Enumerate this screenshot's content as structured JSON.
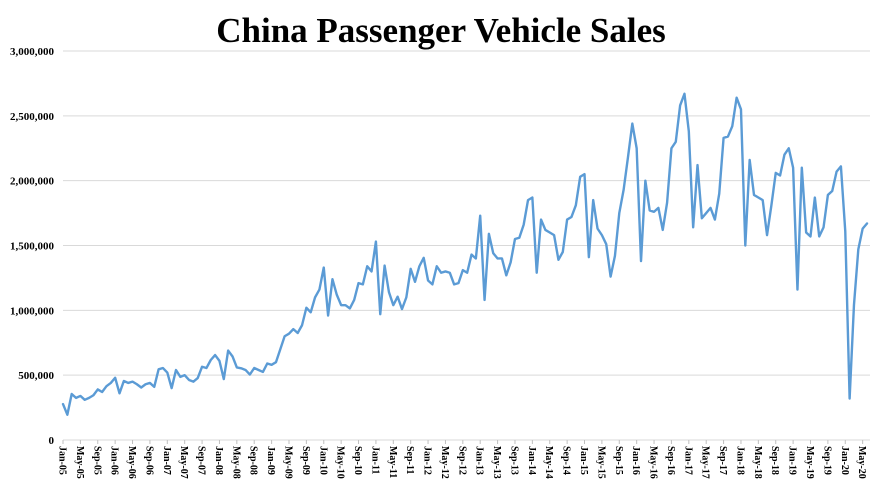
{
  "title": "China Passenger Vehicle Sales",
  "colors": {
    "line": "#5B9BD5",
    "gridline": "#D9D9D9",
    "tick": "#BFBFBF",
    "text": "#000000",
    "background": "#FFFFFF"
  },
  "chart_data": {
    "type": "line",
    "title": "China Passenger Vehicle Sales",
    "x_range": "Jan-05 to Jun-20, monthly",
    "ylim": [
      0,
      3000000
    ],
    "grid": "horizontal",
    "legend": "none",
    "y_ticks": [
      {
        "value": 0,
        "label": "0"
      },
      {
        "value": 500000,
        "label": "500,000"
      },
      {
        "value": 1000000,
        "label": "1,000,000"
      },
      {
        "value": 1500000,
        "label": "1,500,000"
      },
      {
        "value": 2000000,
        "label": "2,000,000"
      },
      {
        "value": 2500000,
        "label": "2,500,000"
      },
      {
        "value": 3000000,
        "label": "3,000,000"
      }
    ],
    "x_tick_interval": 4,
    "x_tick_labels": [
      "Jan-05",
      "May-05",
      "Sep-05",
      "Jan-06",
      "May-06",
      "Sep-06",
      "Jan-07",
      "May-07",
      "Sep-07",
      "Jan-08",
      "May-08",
      "Sep-08",
      "Jan-09",
      "May-09",
      "Sep-09",
      "Jan-10",
      "May-10",
      "Sep-10",
      "Jan-11",
      "May-11",
      "Sep-11",
      "Jan-12",
      "May-12",
      "Sep-12",
      "Jan-13",
      "May-13",
      "Sep-13",
      "Jan-14",
      "May-14",
      "Sep-14",
      "Jan-15",
      "May-15",
      "Sep-15",
      "Jan-16",
      "May-16",
      "Sep-16",
      "Jan-17",
      "May-17",
      "Sep-17",
      "Jan-18",
      "May-18",
      "Sep-18",
      "Jan-19",
      "May-19",
      "Sep-19",
      "Jan-20",
      "May-20"
    ],
    "values": [
      277000,
      195000,
      355000,
      325000,
      340000,
      310000,
      325000,
      345000,
      390000,
      370000,
      415000,
      440000,
      480000,
      360000,
      455000,
      440000,
      450000,
      430000,
      405000,
      430000,
      440000,
      410000,
      545000,
      555000,
      520000,
      400000,
      540000,
      487000,
      500000,
      463000,
      450000,
      478000,
      565000,
      555000,
      617000,
      655000,
      610000,
      470000,
      690000,
      645000,
      560000,
      553000,
      540000,
      505000,
      555000,
      540000,
      525000,
      590000,
      580000,
      600000,
      700000,
      800000,
      820000,
      855000,
      825000,
      885000,
      1020000,
      985000,
      1100000,
      1160000,
      1330000,
      960000,
      1240000,
      1120000,
      1040000,
      1040000,
      1015000,
      1080000,
      1210000,
      1200000,
      1340000,
      1300000,
      1530000,
      970000,
      1345000,
      1140000,
      1040000,
      1105000,
      1010000,
      1100000,
      1320000,
      1220000,
      1340000,
      1405000,
      1230000,
      1200000,
      1340000,
      1290000,
      1300000,
      1290000,
      1200000,
      1210000,
      1310000,
      1290000,
      1430000,
      1400000,
      1730000,
      1080000,
      1590000,
      1440000,
      1400000,
      1400000,
      1270000,
      1370000,
      1550000,
      1560000,
      1660000,
      1850000,
      1870000,
      1290000,
      1700000,
      1620000,
      1600000,
      1580000,
      1390000,
      1450000,
      1700000,
      1720000,
      1810000,
      2030000,
      2050000,
      1410000,
      1850000,
      1630000,
      1580000,
      1510000,
      1260000,
      1420000,
      1750000,
      1930000,
      2180000,
      2440000,
      2250000,
      1380000,
      2000000,
      1770000,
      1760000,
      1790000,
      1620000,
      1830000,
      2250000,
      2300000,
      2580000,
      2670000,
      2380000,
      1640000,
      2120000,
      1710000,
      1750000,
      1790000,
      1700000,
      1900000,
      2330000,
      2340000,
      2420000,
      2640000,
      2550000,
      1500000,
      2160000,
      1890000,
      1870000,
      1850000,
      1580000,
      1810000,
      2060000,
      2040000,
      2200000,
      2250000,
      2100000,
      1160000,
      2100000,
      1600000,
      1570000,
      1870000,
      1570000,
      1640000,
      1890000,
      1920000,
      2070000,
      2110000,
      1610000,
      320000,
      1040000,
      1470000,
      1630000,
      1670000
    ]
  }
}
